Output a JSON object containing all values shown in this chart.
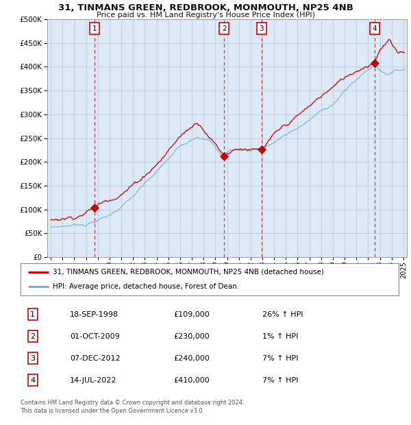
{
  "title": "31, TINMANS GREEN, REDBROOK, MONMOUTH, NP25 4NB",
  "subtitle": "Price paid vs. HM Land Registry's House Price Index (HPI)",
  "plot_background": "#dce9f7",
  "red_line_color": "#cc0000",
  "blue_line_color": "#7aafd4",
  "vline_color": "#cc0000",
  "grid_color": "#b0b8c8",
  "transactions": [
    {
      "num": 1,
      "date_str": "18-SEP-1998",
      "price": 109000,
      "pct": "26%",
      "dir": "↑",
      "x_year": 1998.72
    },
    {
      "num": 2,
      "date_str": "01-OCT-2009",
      "price": 230000,
      "pct": "1%",
      "dir": "↑",
      "x_year": 2009.75
    },
    {
      "num": 3,
      "date_str": "07-DEC-2012",
      "price": 240000,
      "pct": "7%",
      "dir": "↑",
      "x_year": 2012.93
    },
    {
      "num": 4,
      "date_str": "14-JUL-2022",
      "price": 410000,
      "pct": "7%",
      "dir": "↑",
      "x_year": 2022.54
    }
  ],
  "legend_line1": "31, TINMANS GREEN, REDBROOK, MONMOUTH, NP25 4NB (detached house)",
  "legend_line2": "HPI: Average price, detached house, Forest of Dean",
  "footer1": "Contains HM Land Registry data © Crown copyright and database right 2024.",
  "footer2": "This data is licensed under the Open Government Licence v3.0.",
  "ylim": [
    0,
    500000
  ],
  "xlim_start": 1994.7,
  "xlim_end": 2025.3
}
